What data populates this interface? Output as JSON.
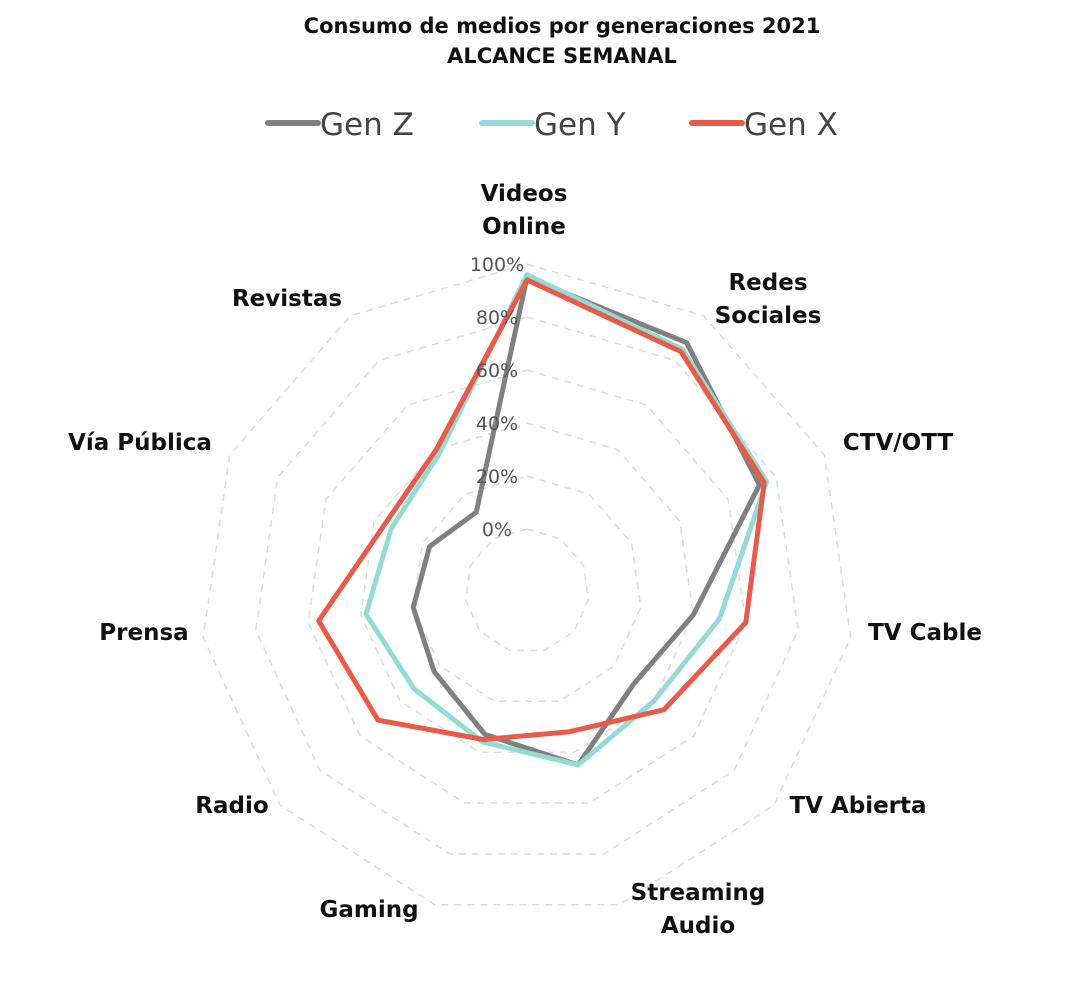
{
  "chart_data": {
    "type": "radar",
    "title": "Consumo de medios por generaciones 2021",
    "subtitle": "ALCANCE SEMANAL",
    "categories": [
      "Videos\nOnline",
      "Redes\nSociales",
      "CTV/OTT",
      "TV Cable",
      "TV Abierta",
      "Streaming\nAudio",
      "Gaming",
      "Radio",
      "Prensa",
      "Vía Pública",
      "Revistas"
    ],
    "tick_labels": [
      "0%",
      "20%",
      "40%",
      "60%",
      "80%",
      "100%"
    ],
    "rlim": [
      0,
      100
    ],
    "grid": true,
    "legend_position": "top",
    "series": [
      {
        "name": "Gen Z",
        "color": "#808080",
        "values": [
          95,
          88,
          73,
          40,
          30,
          45,
          33,
          23,
          20,
          17,
          12
        ]
      },
      {
        "name": "Gen Y",
        "color": "#96dbd3",
        "values": [
          96,
          85,
          76,
          50,
          40,
          45,
          36,
          33,
          38,
          33,
          38
        ]
      },
      {
        "name": "Gen X",
        "color": "#ea5a4a",
        "values": [
          94,
          84,
          75,
          60,
          45,
          32,
          35,
          51,
          56,
          36,
          40
        ]
      }
    ]
  }
}
